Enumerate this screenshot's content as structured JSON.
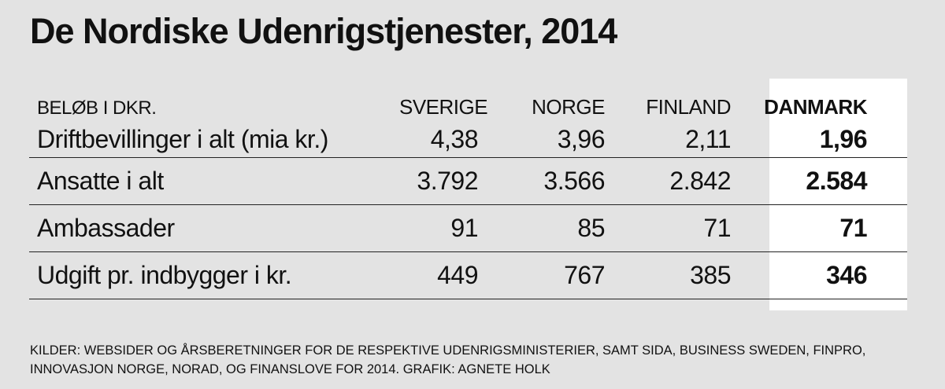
{
  "title": "De Nordiske Udenrigstjenester, 2014",
  "chart_data": {
    "type": "table",
    "title": "De Nordiske Udenrigstjenester, 2014",
    "unit_label": "BELØB I DKR.",
    "columns": [
      "SVERIGE",
      "NORGE",
      "FINLAND",
      "DANMARK"
    ],
    "highlight_column": "DANMARK",
    "rows": [
      {
        "label": "Driftbevillinger i alt (mia kr.)",
        "values": [
          "4,38",
          "3,96",
          "2,11",
          "1,96"
        ]
      },
      {
        "label": "Ansatte i alt",
        "values": [
          "3.792",
          "3.566",
          "2.842",
          "2.584"
        ]
      },
      {
        "label": "Ambassader",
        "values": [
          "91",
          "85",
          "71",
          "71"
        ]
      },
      {
        "label": "Udgift pr. indbygger i kr.",
        "values": [
          "449",
          "767",
          "385",
          "346"
        ]
      }
    ]
  },
  "source_lines": [
    "KILDER: WEBSIDER OG ÅRSBERETNINGER FOR DE RESPEKTIVE UDENRIGSMINISTERIER, SAMT SIDA, BUSINESS SWEDEN, FINPRO,",
    "INNOVASJON NORGE, NORAD, OG FINANSLOVE FOR 2014. GRAFIK: AGNETE HOLK"
  ],
  "colors": {
    "background": "#e3e3e3",
    "highlight_column_bg": "#ffffff",
    "text": "#111111"
  }
}
